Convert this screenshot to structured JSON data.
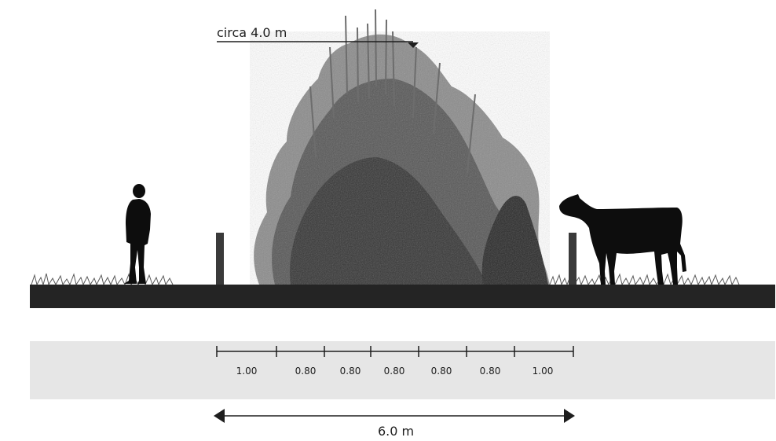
{
  "height_label": "circa 4.0 m",
  "width_label": "6.0 m",
  "spacings": [
    "1.00",
    "0.80",
    "0.80",
    "0.80",
    "0.80",
    "0.80",
    "1.00"
  ],
  "colors": {
    "ground": "#242424",
    "scale_band": "#e6e6e6",
    "silhouette": "#0d0d0d",
    "line": "#1e1e1e"
  }
}
